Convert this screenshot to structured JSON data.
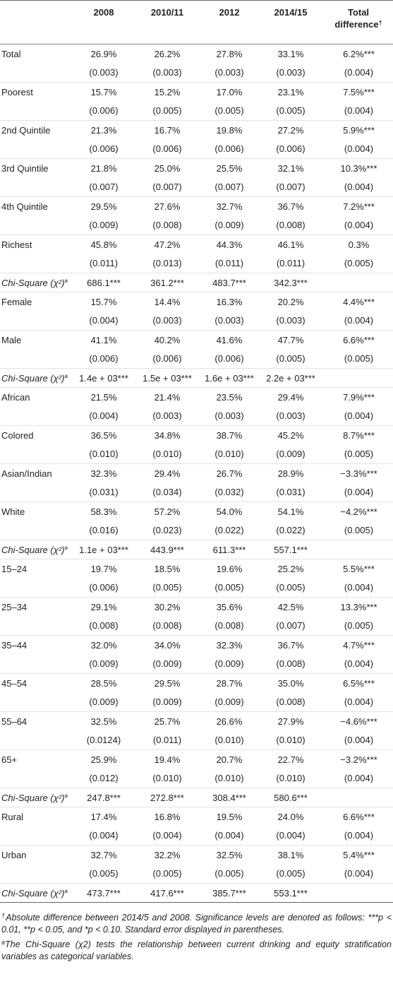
{
  "headers": {
    "stub": "",
    "y2008": "2008",
    "y2010": "2010/11",
    "y2012": "2012",
    "y2014": "2014/15",
    "total_line1": "Total",
    "total_line2": "difference",
    "dagger": "†"
  },
  "chi_label": "Chi-Square (χ²)",
  "chi_sup": "a",
  "sections": [
    {
      "rows": [
        {
          "label": "Total",
          "est": [
            "26.9%",
            "26.2%",
            "27.8%",
            "33.1%",
            "6.2%***"
          ],
          "se": [
            "(0.003)",
            "(0.003)",
            "(0.003)",
            "(0.003)",
            "(0.004)"
          ]
        },
        {
          "label": "Poorest",
          "est": [
            "15.7%",
            "15.2%",
            "17.0%",
            "23.1%",
            "7.5%***"
          ],
          "se": [
            "(0.006)",
            "(0.005)",
            "(0.005)",
            "(0.005)",
            "(0.004)"
          ]
        },
        {
          "label": "2nd Quintile",
          "est": [
            "21.3%",
            "16.7%",
            "19.8%",
            "27.2%",
            "5.9%***"
          ],
          "se": [
            "(0.006)",
            "(0.006)",
            "(0.006)",
            "(0.006)",
            "(0.004)"
          ]
        },
        {
          "label": "3rd Quintile",
          "est": [
            "21.8%",
            "25.0%",
            "25.5%",
            "32.1%",
            "10.3%***"
          ],
          "se": [
            "(0.007)",
            "(0.007)",
            "(0.007)",
            "(0.007)",
            "(0.004)"
          ]
        },
        {
          "label": "4th Quintile",
          "est": [
            "29.5%",
            "27.6%",
            "32.7%",
            "36.7%",
            "7.2%***"
          ],
          "se": [
            "(0.009)",
            "(0.008)",
            "(0.009)",
            "(0.008)",
            "(0.004)"
          ]
        },
        {
          "label": "Richest",
          "est": [
            "45.8%",
            "47.2%",
            "44.3%",
            "46.1%",
            "0.3%"
          ],
          "se": [
            "(0.011)",
            "(0.013)",
            "(0.011)",
            "(0.011)",
            "(0.005)"
          ]
        }
      ],
      "chi": [
        "686.1***",
        "361.2***",
        "483.7***",
        "342.3***"
      ]
    },
    {
      "rows": [
        {
          "label": "Female",
          "est": [
            "15.7%",
            "14.4%",
            "16.3%",
            "20.2%",
            "4.4%***"
          ],
          "se": [
            "(0.004)",
            "(0.003)",
            "(0.003)",
            "(0.003)",
            "(0.004)"
          ]
        },
        {
          "label": "Male",
          "est": [
            "41.1%",
            "40.2%",
            "41.6%",
            "47.7%",
            "6.6%***"
          ],
          "se": [
            "(0.006)",
            "(0.006)",
            "(0.006)",
            "(0.005)",
            "(0.005)"
          ]
        }
      ],
      "chi": [
        "1.4e + 03***",
        "1.5e + 03***",
        "1.6e + 03***",
        "2.2e + 03***"
      ]
    },
    {
      "rows": [
        {
          "label": "African",
          "est": [
            "21.5%",
            "21.4%",
            "23.5%",
            "29.4%",
            "7.9%***"
          ],
          "se": [
            "(0.004)",
            "(0.003)",
            "(0.003)",
            "(0.003)",
            "(0.004)"
          ]
        },
        {
          "label": "Colored",
          "est": [
            "36.5%",
            "34.8%",
            "38.7%",
            "45.2%",
            "8.7%***"
          ],
          "se": [
            "(0.010)",
            "(0.010)",
            "(0.010)",
            "(0.009)",
            "(0.005)"
          ]
        },
        {
          "label": "Asian/Indian",
          "est": [
            "32.3%",
            "29.4%",
            "26.7%",
            "28.9%",
            "−3.3%***"
          ],
          "se": [
            "(0.031)",
            "(0.034)",
            "(0.032)",
            "(0.031)",
            "(0.004)"
          ]
        },
        {
          "label": "White",
          "est": [
            "58.3%",
            "57.2%",
            "54.0%",
            "54.1%",
            "−4.2%***"
          ],
          "se": [
            "(0.016)",
            "(0.023)",
            "(0.022)",
            "(0.022)",
            "(0.005)"
          ]
        }
      ],
      "chi": [
        "1.1e + 03***",
        "443.9***",
        "611.3***",
        "557.1***"
      ]
    },
    {
      "rows": [
        {
          "label": "15–24",
          "est": [
            "19.7%",
            "18.5%",
            "19.6%",
            "25.2%",
            "5.5%***"
          ],
          "se": [
            "(0.006)",
            "(0.005)",
            "(0.005)",
            "(0.005)",
            "(0.004)"
          ]
        },
        {
          "label": "25–34",
          "est": [
            "29.1%",
            "30.2%",
            "35.6%",
            "42.5%",
            "13.3%***"
          ],
          "se": [
            "(0.008)",
            "(0.008)",
            "(0.008)",
            "(0.007)",
            "(0.005)"
          ]
        },
        {
          "label": "35–44",
          "est": [
            "32.0%",
            "34.0%",
            "32.3%",
            "36.7%",
            "4.7%***"
          ],
          "se": [
            "(0.009)",
            "(0.009)",
            "(0.009)",
            "(0.008)",
            "(0.004)"
          ]
        },
        {
          "label": "45–54",
          "est": [
            "28.5%",
            "29.5%",
            "28.7%",
            "35.0%",
            "6.5%***"
          ],
          "se": [
            "(0.009)",
            "(0.009)",
            "(0.009)",
            "(0.008)",
            "(0.004)"
          ]
        },
        {
          "label": "55–64",
          "est": [
            "32.5%",
            "25.7%",
            "26.6%",
            "27.9%",
            "−4.6%***"
          ],
          "se": [
            "(0.0124)",
            "(0.011)",
            "(0.010)",
            "(0.010)",
            "(0.004)"
          ]
        },
        {
          "label": "65+",
          "est": [
            "25.9%",
            "19.4%",
            "20.7%",
            "22.7%",
            "−3.2%***"
          ],
          "se": [
            "(0.012)",
            "(0.010)",
            "(0.010)",
            "(0.010)",
            "(0.004)"
          ]
        }
      ],
      "chi": [
        "247.8***",
        "272.8***",
        "308.4***",
        "580.6***"
      ]
    },
    {
      "rows": [
        {
          "label": "Rural",
          "est": [
            "17.4%",
            "16.8%",
            "19.5%",
            "24.0%",
            "6.6%***"
          ],
          "se": [
            "(0.004)",
            "(0.004)",
            "(0.004)",
            "(0.004)",
            "(0.004)"
          ]
        },
        {
          "label": "Urban",
          "est": [
            "32.7%",
            "32.2%",
            "32.5%",
            "38.1%",
            "5.4%***"
          ],
          "se": [
            "(0.005)",
            "(0.005)",
            "(0.005)",
            "(0.005)",
            "(0.004)"
          ]
        }
      ],
      "chi": [
        "473.7***",
        "417.6***",
        "385.7***",
        "553.1***"
      ]
    }
  ],
  "footnotes": {
    "dagger_mark": "†",
    "note1": "Absolute difference between 2014/5 and 2008. Significance levels are denoted as follows: ***p < 0.01, **p < 0.05, and *p < 0.10. Standard error displayed in parentheses.",
    "a_mark": "a",
    "note2": "The Chi-Square (χ2) tests the relationship between current drinking and equity stratification variables as categorical variables."
  }
}
